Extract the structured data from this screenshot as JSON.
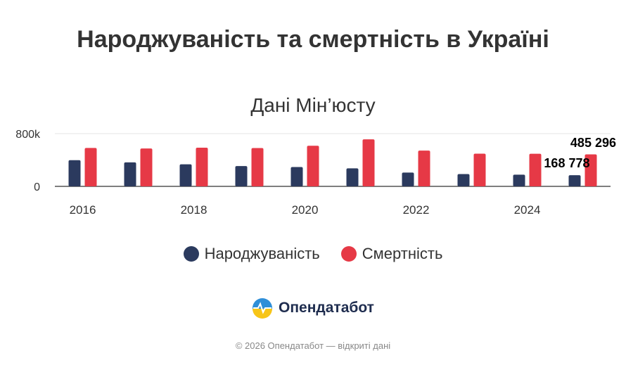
{
  "chart_data": {
    "type": "bar",
    "title": "Народжуваність та смертність в Україні",
    "subtitle": "Дані Мін’юсту",
    "categories": [
      2016,
      2017,
      2018,
      2019,
      2020,
      2021,
      2022,
      2023,
      2024,
      2025
    ],
    "x_tick_labels": [
      "2016",
      "2018",
      "2020",
      "2022",
      "2024"
    ],
    "y_tick_labels": [
      "0",
      "800k"
    ],
    "ylim": [
      0,
      800000
    ],
    "grid": true,
    "legend_position": "bottom",
    "series": [
      {
        "name": "Народжуваність",
        "color": "#2b3a5e",
        "values": [
          397000,
          364000,
          335000,
          308000,
          293000,
          273000,
          209000,
          187000,
          177000,
          168778
        ]
      },
      {
        "name": "Смертність",
        "color": "#e63946",
        "values": [
          583000,
          575000,
          587000,
          581000,
          616000,
          714000,
          543000,
          496000,
          495000,
          485296
        ]
      }
    ],
    "data_labels": {
      "birth_last": "168 778",
      "death_last": "485 296"
    }
  },
  "legend": {
    "items": [
      "Народжуваність",
      "Смертність"
    ]
  },
  "brand": {
    "name": "Опендатабот"
  },
  "footer": {
    "text": "© 2026 Опендатабот — відкриті дані"
  }
}
